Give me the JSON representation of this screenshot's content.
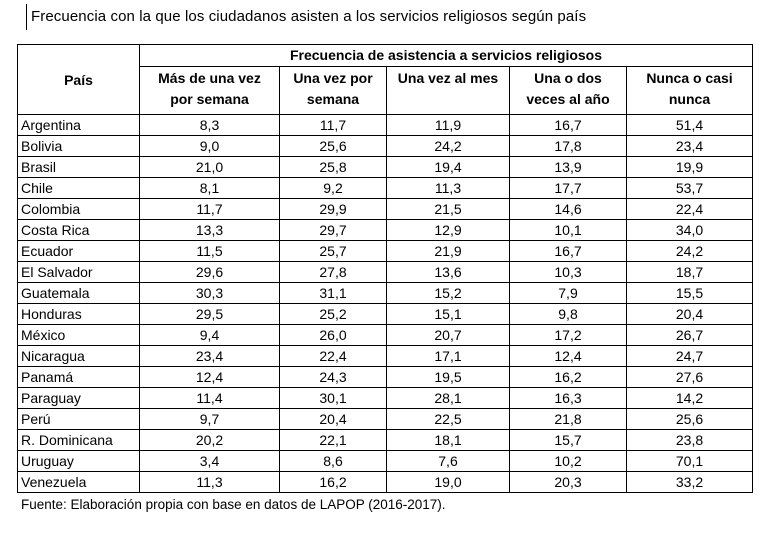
{
  "page": {
    "title": "Frecuencia con la que los ciudadanos asisten a los servicios religiosos según país",
    "source_note": "Fuente: Elaboración propia con base en datos de LAPOP (2016-2017)."
  },
  "table": {
    "corner_header": "País",
    "group_header": "Frecuencia de asistencia a servicios religiosos",
    "col_headers": [
      "Más de una vez\npor semana",
      "Una vez por\nsemana",
      "Una vez al mes",
      "Una o dos\nveces al año",
      "Nunca o casi\nnunca"
    ],
    "rows": [
      {
        "country": "Argentina",
        "values": [
          "8,3",
          "11,7",
          "11,9",
          "16,7",
          "51,4"
        ]
      },
      {
        "country": "Bolivia",
        "values": [
          "9,0",
          "25,6",
          "24,2",
          "17,8",
          "23,4"
        ]
      },
      {
        "country": "Brasil",
        "values": [
          "21,0",
          "25,8",
          "19,4",
          "13,9",
          "19,9"
        ]
      },
      {
        "country": "Chile",
        "values": [
          "8,1",
          "9,2",
          "11,3",
          "17,7",
          "53,7"
        ]
      },
      {
        "country": "Colombia",
        "values": [
          "11,7",
          "29,9",
          "21,5",
          "14,6",
          "22,4"
        ]
      },
      {
        "country": "Costa Rica",
        "values": [
          "13,3",
          "29,7",
          "12,9",
          "10,1",
          "34,0"
        ]
      },
      {
        "country": "Ecuador",
        "values": [
          "11,5",
          "25,7",
          "21,9",
          "16,7",
          "24,2"
        ]
      },
      {
        "country": "El Salvador",
        "values": [
          "29,6",
          "27,8",
          "13,6",
          "10,3",
          "18,7"
        ]
      },
      {
        "country": "Guatemala",
        "values": [
          "30,3",
          "31,1",
          "15,2",
          "7,9",
          "15,5"
        ]
      },
      {
        "country": "Honduras",
        "values": [
          "29,5",
          "25,2",
          "15,1",
          "9,8",
          "20,4"
        ]
      },
      {
        "country": "México",
        "values": [
          "9,4",
          "26,0",
          "20,7",
          "17,2",
          "26,7"
        ]
      },
      {
        "country": "Nicaragua",
        "values": [
          "23,4",
          "22,4",
          "17,1",
          "12,4",
          "24,7"
        ]
      },
      {
        "country": "Panamá",
        "values": [
          "12,4",
          "24,3",
          "19,5",
          "16,2",
          "27,6"
        ]
      },
      {
        "country": "Paraguay",
        "values": [
          "11,4",
          "30,1",
          "28,1",
          "16,3",
          "14,2"
        ]
      },
      {
        "country": "Perú",
        "values": [
          "9,7",
          "20,4",
          "22,5",
          "21,8",
          "25,6"
        ]
      },
      {
        "country": "R. Dominicana",
        "values": [
          "20,2",
          "22,1",
          "18,1",
          "15,7",
          "23,8"
        ]
      },
      {
        "country": "Uruguay",
        "values": [
          "3,4",
          "8,6",
          "7,6",
          "10,2",
          "70,1"
        ]
      },
      {
        "country": "Venezuela",
        "values": [
          "11,3",
          "16,2",
          "19,0",
          "20,3",
          "33,2"
        ]
      }
    ]
  }
}
